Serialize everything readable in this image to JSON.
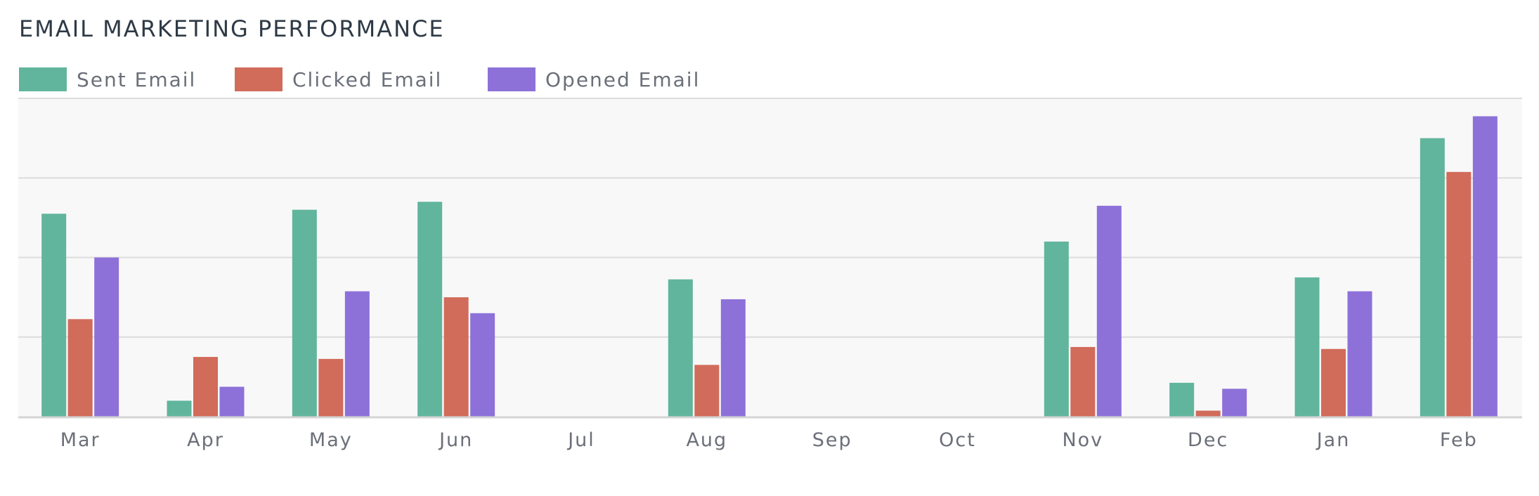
{
  "chart_data": {
    "type": "bar",
    "title": "EMAIL MARKETING PERFORMANCE",
    "xlabel": "",
    "ylabel": "",
    "categories": [
      "Mar",
      "Apr",
      "May",
      "Jun",
      "Jul",
      "Aug",
      "Sep",
      "Oct",
      "Nov",
      "Dec",
      "Jan",
      "Feb"
    ],
    "series": [
      {
        "name": "Sent Email",
        "color": "#61b59c",
        "values": [
          51,
          4,
          52,
          54,
          0,
          34.5,
          0,
          0,
          44,
          8.5,
          35,
          70
        ]
      },
      {
        "name": "Clicked Email",
        "color": "#d16b5a",
        "values": [
          24.5,
          15,
          14.5,
          30,
          0,
          13,
          0,
          0,
          17.5,
          1.5,
          17,
          61.5
        ]
      },
      {
        "name": "Opened Email",
        "color": "#8d71d9",
        "values": [
          40,
          7.5,
          31.5,
          26,
          0,
          29.5,
          0,
          0,
          53,
          7,
          31.5,
          75.5
        ]
      }
    ],
    "ylim": [
      0,
      80
    ],
    "y_gridlines": [
      0,
      20,
      40,
      60,
      80
    ],
    "y_tick_labels_shown": false,
    "grid": true,
    "legend_position": "top-left",
    "plot_background": "#f8f8f8"
  }
}
